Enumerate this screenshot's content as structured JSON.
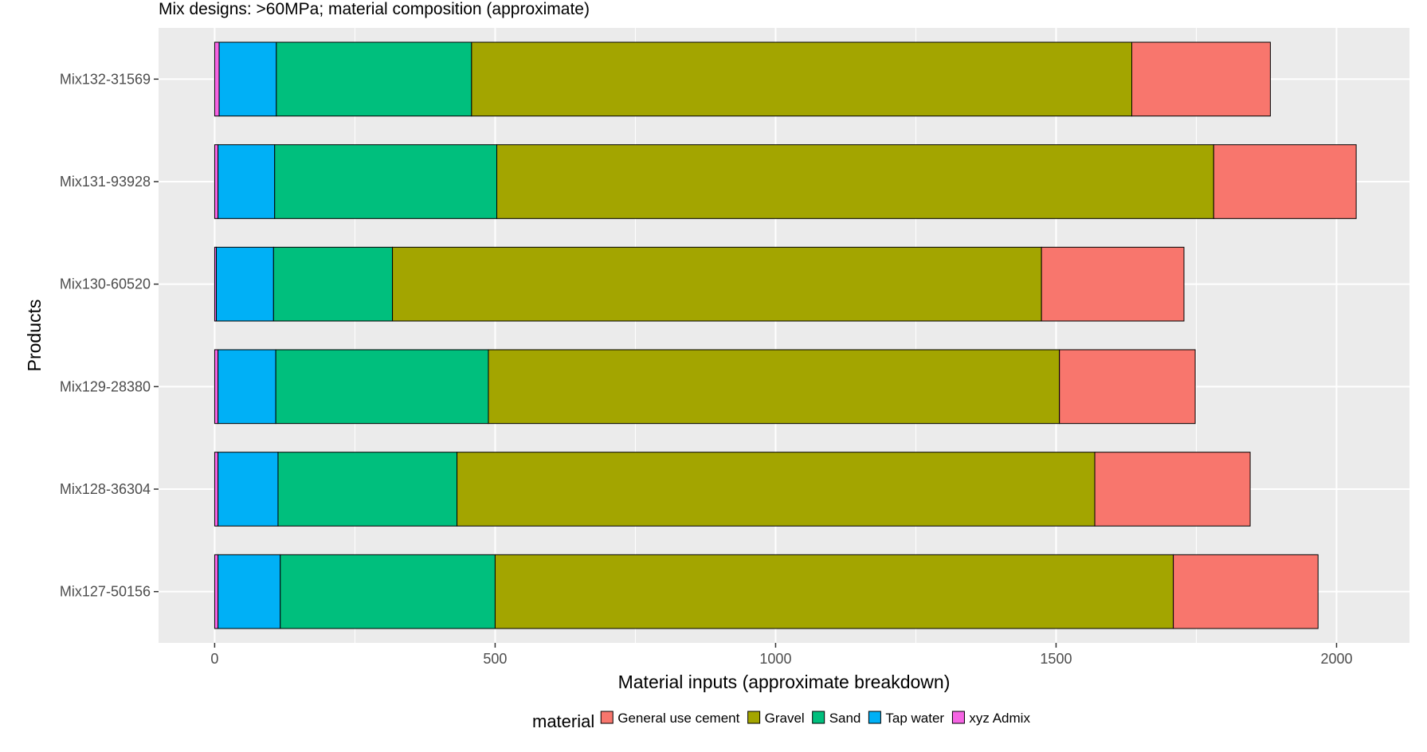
{
  "chart_data": {
    "type": "bar",
    "orientation": "horizontal",
    "stacked": true,
    "title": "Mix designs: >60MPa; material composition (approximate)",
    "xlabel": "Material inputs (approximate breakdown)",
    "ylabel": "Products",
    "xlim": [
      -100,
      2130
    ],
    "x_ticks": [
      0,
      500,
      1000,
      1500,
      2000
    ],
    "x_tick_labels": [
      "0",
      "500",
      "1000",
      "1500",
      "2000"
    ],
    "grid": true,
    "legend_title": "material",
    "legend_position": "bottom",
    "categories": [
      "Mix132-31569",
      "Mix131-93928",
      "Mix130-60520",
      "Mix129-28380",
      "Mix128-36304",
      "Mix127-50156"
    ],
    "series": [
      {
        "name": "xyz Admix",
        "color": "#F564E3",
        "values": [
          8,
          6,
          3,
          6,
          6,
          6
        ]
      },
      {
        "name": "Tap water",
        "color": "#00B0F6",
        "values": [
          102,
          101,
          102,
          103,
          107,
          111
        ]
      },
      {
        "name": "Sand",
        "color": "#00BF7D",
        "values": [
          348,
          396,
          212,
          379,
          319,
          383
        ]
      },
      {
        "name": "Gravel",
        "color": "#A3A500",
        "values": [
          1177,
          1278,
          1157,
          1018,
          1137,
          1209
        ]
      },
      {
        "name": "General use cement",
        "color": "#F8766D",
        "values": [
          247,
          254,
          254,
          242,
          277,
          258
        ]
      }
    ],
    "legend_items": [
      {
        "name": "General use cement",
        "color": "#F8766D"
      },
      {
        "name": "Gravel",
        "color": "#A3A500"
      },
      {
        "name": "Sand",
        "color": "#00BF7D"
      },
      {
        "name": "Tap water",
        "color": "#00B0F6"
      },
      {
        "name": "xyz Admix",
        "color": "#F564E3"
      }
    ],
    "panel_color": "#EBEBEB",
    "gridline_color": "#FFFFFF"
  }
}
